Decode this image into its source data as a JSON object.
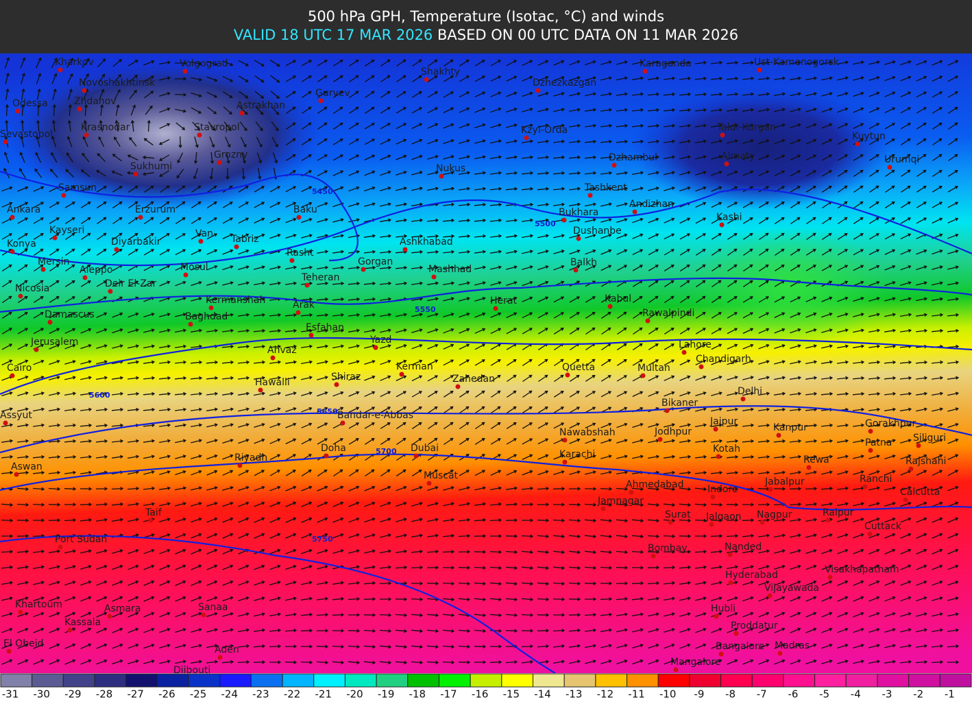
{
  "header": {
    "title": "500 hPa GPH, Temperature (Isotac, °C) and winds",
    "valid": "VALID 18 UTC 17 MAR 2026",
    "based": "BASED ON 00 UTC DATA ON 11 MAR 2026"
  },
  "map": {
    "cities": [
      "Kharkov",
      "Novoshakhtinsk",
      "Volgograd",
      "Odessa",
      "Zhdanov",
      "Astrakhan",
      "Gurvev",
      "Shakhty",
      "Karaganda",
      "Ust-Kamenogorsk",
      "Krasnodar",
      "Sevastopol",
      "Stavropol",
      "Dzhezkazgan",
      "Kzyl-Orda",
      "Taldi-Kurgan",
      "Kuytun",
      "Urumqi",
      "Grozny",
      "Sukhumi",
      "Nukus",
      "Dzhambul",
      "Almaty",
      "Samsun",
      "Tashkent",
      "Andizhan",
      "Ankara",
      "Erzurum",
      "Baku",
      "Bukhara",
      "Kashi",
      "Kayseri",
      "Van",
      "Tabriz",
      "Dushanbe",
      "Konya",
      "Diyarbakir",
      "Ashkhabad",
      "Rasht",
      "Mersin",
      "Aleppo",
      "Mosul",
      "Gorgan",
      "Balkh",
      "Mashhad",
      "Nicosia",
      "Deir El-Zar",
      "Teheran",
      "Herat",
      "Kabul",
      "Kermanshah",
      "Arak",
      "Rawalpindi",
      "Damascus",
      "Baghdad",
      "Esfahan",
      "Jerusalem",
      "Yazd",
      "Lahore",
      "Ahvaz",
      "Chandigarh",
      "Cairo",
      "Kerman",
      "Quetta",
      "Multan",
      "Hawalli",
      "Shiraz",
      "Zahedan",
      "Delhi",
      "Bikaner",
      "Assyut",
      "Bandar-e-Abbas",
      "Jaipur",
      "Kanpur",
      "Gorakhpur",
      "Nawabshah",
      "Jodhpur",
      "Siliguri",
      "Patna",
      "Riyadh",
      "Doha",
      "Dubai",
      "Karachi",
      "Kotah",
      "Rewa",
      "Rajshahi",
      "Aswan",
      "Muscat",
      "Ahmedabad",
      "Ranchi",
      "Jabalpur",
      "Indore",
      "Calcutta",
      "Jamnagar",
      "Taif",
      "Surat",
      "Jalgaon",
      "Nagpur",
      "Raipur",
      "Cuttack",
      "Port Sudan",
      "Bombay",
      "Nanded",
      "Hyderabad",
      "Visakhapatnam",
      "Vijayawada",
      "Khartoum",
      "Asmara",
      "Sanaa",
      "Hubli",
      "Kassala",
      "Proddatur",
      "El Obeid",
      "Aden",
      "Bangalore",
      "Madras",
      "Djibouti",
      "Mangalore"
    ],
    "contours": [
      "5450",
      "5500",
      "5550",
      "5600",
      "5650",
      "5700",
      "5750"
    ]
  },
  "legend": {
    "levels": [
      -31,
      -30,
      -29,
      -28,
      -27,
      -26,
      -25,
      -24,
      -23,
      -22,
      -21,
      -20,
      -19,
      -18,
      -17,
      -16,
      -15,
      -14,
      -13,
      -12,
      -11,
      -10,
      -9,
      -8,
      -7,
      -6,
      -5,
      -4,
      -3,
      -2,
      -1
    ],
    "colors": [
      "#8080a8",
      "#5c5c94",
      "#42428a",
      "#2e2e80",
      "#12126e",
      "#0a22a0",
      "#0a32c8",
      "#1a1aff",
      "#0a70f0",
      "#00b4ff",
      "#00f0ff",
      "#00e8c0",
      "#20d080",
      "#00c000",
      "#00f000",
      "#c4f000",
      "#ffff00",
      "#f0e890",
      "#e6c470",
      "#ffc000",
      "#ff9000",
      "#ff0000",
      "#f00030",
      "#ff0050",
      "#ff0070",
      "#ff1090",
      "#ff20a0",
      "#f020a0",
      "#e010a0",
      "#d010a0",
      "#c010a0"
    ]
  }
}
